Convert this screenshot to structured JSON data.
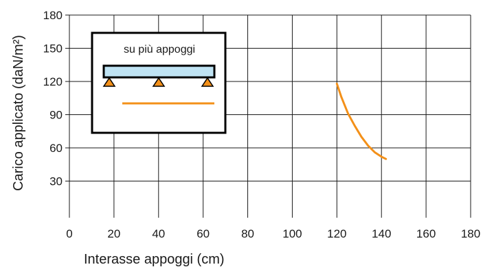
{
  "chart_data": {
    "type": "line",
    "xlabel": "Interasse appoggi (cm)",
    "ylabel": "Carico applicato (daN/m²)",
    "xlim": [
      0,
      180
    ],
    "ylim": [
      0,
      180
    ],
    "x_ticks": [
      0,
      20,
      40,
      60,
      80,
      100,
      120,
      140,
      160,
      180
    ],
    "y_ticks": [
      30,
      60,
      90,
      120,
      150,
      180
    ],
    "grid": true,
    "series": [
      {
        "color": "#f39019",
        "x": [
          120,
          122,
          125,
          128,
          131,
          134,
          137,
          140,
          142
        ],
        "y": [
          118,
          106,
          91,
          80,
          70,
          62,
          56,
          52,
          50
        ]
      }
    ],
    "inset": {
      "title": "su più appoggi",
      "beam_color": "#bfe3f3",
      "support_color": "#f39019",
      "line_color": "#f39019"
    }
  }
}
